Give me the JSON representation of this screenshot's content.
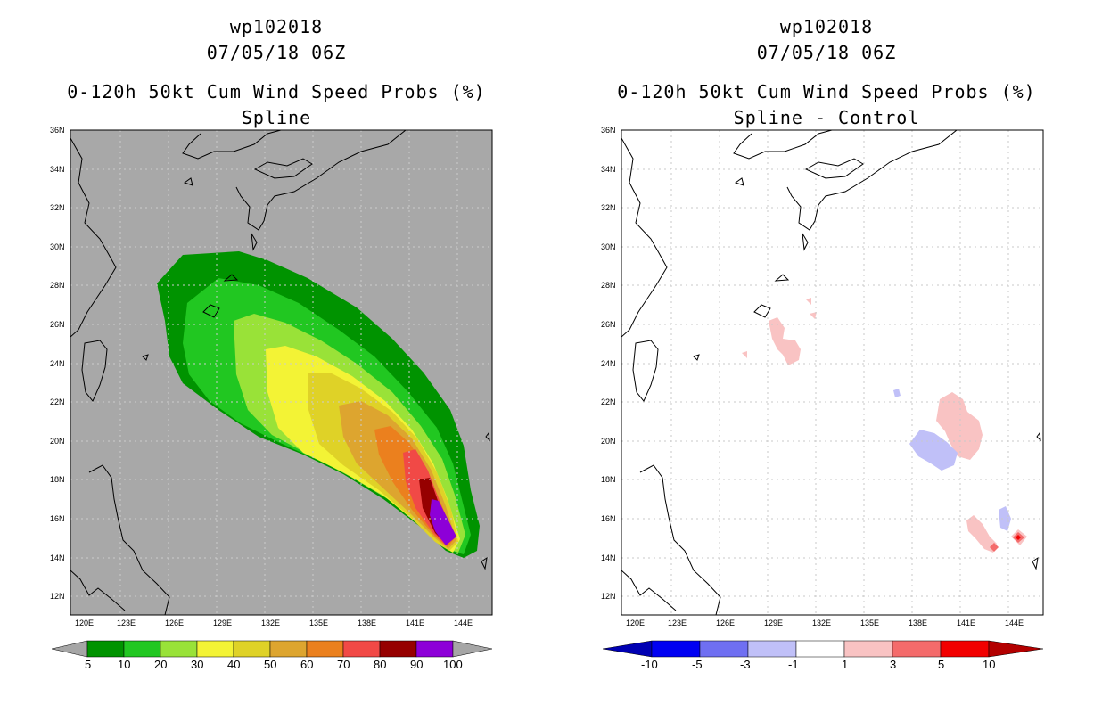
{
  "left": {
    "title_line1": "wp102018",
    "title_line2": "07/05/18 06Z",
    "title_line3": "0-120h 50kt Cum Wind Speed Probs (%)",
    "title_line4": "Spline",
    "lon_labels": [
      "120E",
      "123E",
      "126E",
      "129E",
      "132E",
      "135E",
      "138E",
      "141E",
      "144E"
    ],
    "lat_labels": [
      "36N",
      "34N",
      "32N",
      "30N",
      "28N",
      "26N",
      "24N",
      "22N",
      "20N",
      "18N",
      "16N",
      "14N",
      "12N"
    ],
    "colorbar": {
      "labels": [
        "5",
        "10",
        "20",
        "30",
        "40",
        "50",
        "60",
        "70",
        "80",
        "90",
        "100"
      ],
      "colors": [
        "#009300",
        "#21c721",
        "#99e238",
        "#f3f335",
        "#dfd227",
        "#dda52f",
        "#eb801e",
        "#f14946",
        "#960000",
        "#8d00d8"
      ],
      "end_color": "#a6a6a6"
    },
    "background_color": "#a8a8a8"
  },
  "right": {
    "title_line1": "wp102018",
    "title_line2": "07/05/18 06Z",
    "title_line3": "0-120h 50kt Cum Wind Speed Probs (%)",
    "title_line4": "Spline - Control",
    "lon_labels": [
      "120E",
      "123E",
      "126E",
      "129E",
      "132E",
      "135E",
      "138E",
      "141E",
      "144E"
    ],
    "lat_labels": [
      "36N",
      "34N",
      "32N",
      "30N",
      "28N",
      "26N",
      "24N",
      "22N",
      "20N",
      "18N",
      "16N",
      "14N",
      "12N"
    ],
    "colorbar": {
      "labels": [
        "-10",
        "-5",
        "-3",
        "-1",
        "1",
        "3",
        "5",
        "10"
      ],
      "colors": [
        "#0000b3",
        "#0000f2",
        "#6f6ff2",
        "#c0c0f8",
        "#ffffff",
        "#f9c3c3",
        "#f46b6b",
        "#f20000",
        "#b30000"
      ]
    },
    "background_color": "#ffffff"
  }
}
